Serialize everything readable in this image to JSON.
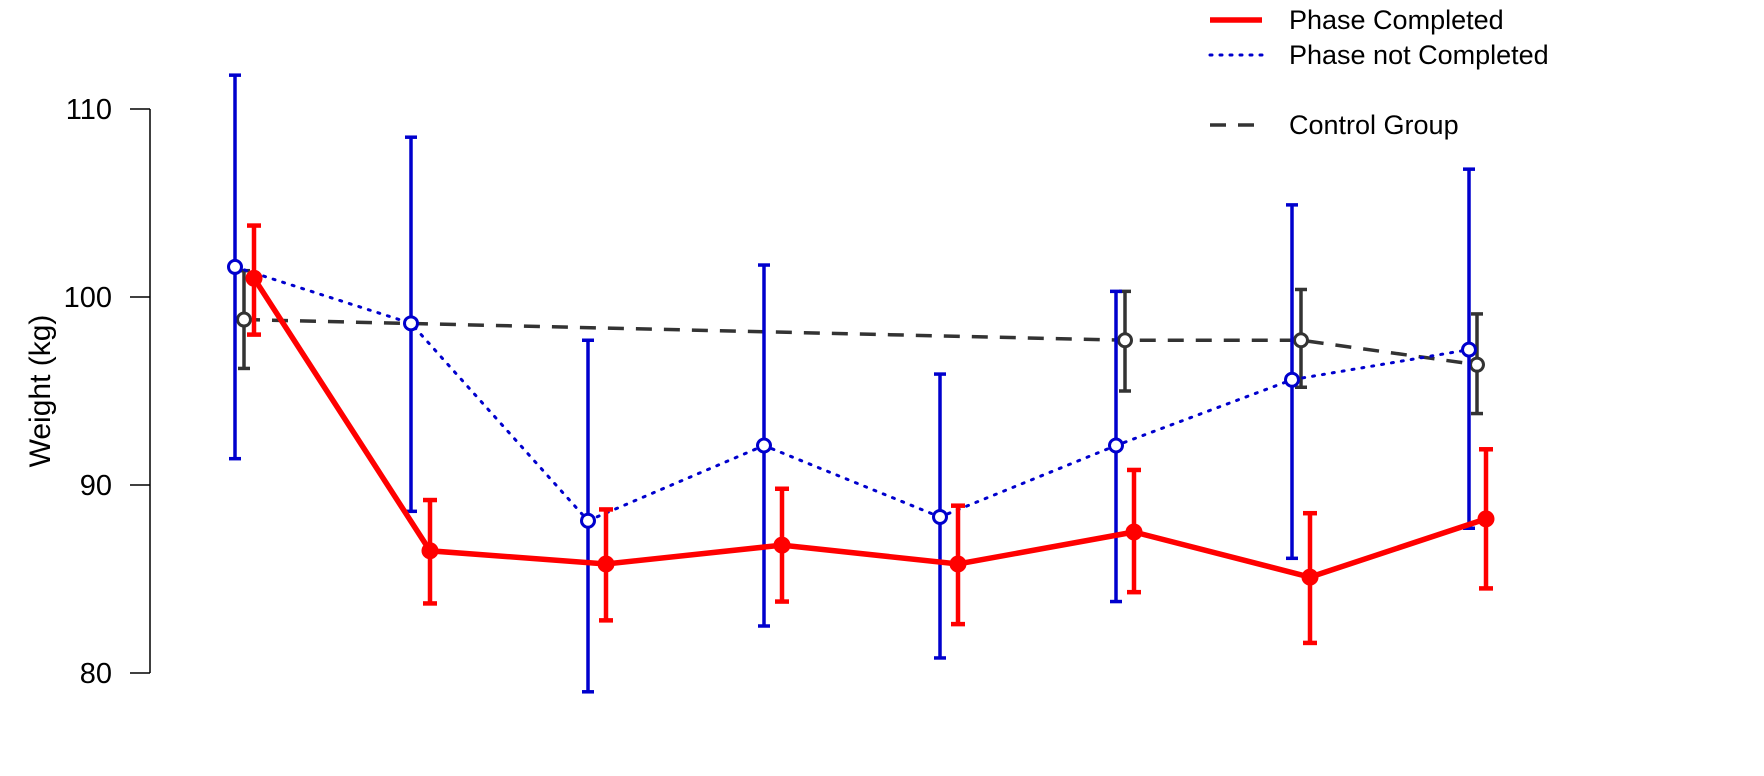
{
  "chart_data": {
    "type": "line",
    "ylabel": "Weight (kg)",
    "xlabel": "",
    "ylim": [
      80,
      110
    ],
    "yticks": [
      80,
      90,
      100,
      110
    ],
    "grid": false,
    "legend_placement": "top-right",
    "series": [
      {
        "name": "Phase Completed",
        "color": "#ff0000",
        "line_style": "solid",
        "marker": "filled-circle",
        "x": [
          1,
          2,
          3,
          4,
          5,
          6,
          7,
          8
        ],
        "y": [
          101.0,
          86.5,
          85.8,
          86.8,
          85.8,
          87.5,
          85.1,
          88.2
        ],
        "error_low": [
          98.0,
          83.7,
          82.8,
          83.8,
          82.6,
          84.3,
          81.6,
          84.5
        ],
        "error_high": [
          103.8,
          89.2,
          88.7,
          89.8,
          88.9,
          90.8,
          88.5,
          91.9
        ]
      },
      {
        "name": "Phase not Completed",
        "color": "#0000cd",
        "line_style": "dotted",
        "marker": "open-circle",
        "x": [
          1,
          2,
          3,
          4,
          5,
          6,
          7,
          8
        ],
        "y": [
          101.6,
          98.6,
          88.1,
          92.1,
          88.3,
          92.1,
          95.6,
          97.2
        ],
        "error_low": [
          91.4,
          88.6,
          79.0,
          82.5,
          80.8,
          83.8,
          86.1,
          87.7
        ],
        "error_high": [
          111.8,
          108.5,
          97.7,
          101.7,
          95.9,
          100.3,
          104.9,
          106.8
        ]
      },
      {
        "name": "Control Group",
        "color": "#333333",
        "line_style": "dashed",
        "marker": "open-circle",
        "x": [
          1,
          6,
          7,
          8
        ],
        "y": [
          98.8,
          97.7,
          97.7,
          96.4
        ],
        "error_low": [
          96.2,
          95.0,
          95.2,
          93.8
        ],
        "error_high": [
          101.4,
          100.3,
          100.4,
          99.1
        ]
      }
    ]
  }
}
